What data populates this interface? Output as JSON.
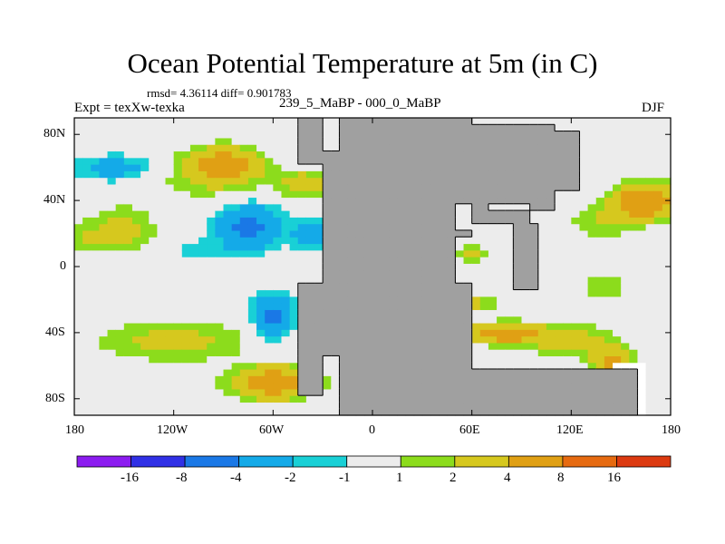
{
  "title": "Ocean Potential Temperature at 5m (in C)",
  "stats": "rmsd= 4.36114 diff= 0.901783",
  "experiment": "Expt = texXw-texka",
  "comparison": "239_5_MaBP - 000_0_MaBP",
  "season": "DJF",
  "axes": {
    "x_ticks": [
      "180",
      "120W",
      "60W",
      "0",
      "60E",
      "120E",
      "180"
    ],
    "x_values": [
      -180,
      -120,
      -60,
      0,
      60,
      120,
      180
    ],
    "y_ticks": [
      "80N",
      "40N",
      "0",
      "40S",
      "80S"
    ],
    "y_values": [
      80,
      40,
      0,
      -40,
      -80
    ],
    "lon_range": [
      -180,
      180
    ],
    "lat_range": [
      -90,
      90
    ]
  },
  "colorbar": {
    "labels": [
      "-16",
      "-8",
      "-4",
      "-2",
      "-1",
      "1",
      "2",
      "4",
      "8",
      "16"
    ],
    "colors": [
      "#8c1cf0",
      "#3030e6",
      "#1a78e6",
      "#14aae8",
      "#19d0d6",
      "#ececec",
      "#8cdc1c",
      "#d6c81e",
      "#e0a014",
      "#e66a10",
      "#dc3a10"
    ]
  },
  "colors": {
    "land": "#a0a0a0",
    "coastline": "#000000"
  }
}
